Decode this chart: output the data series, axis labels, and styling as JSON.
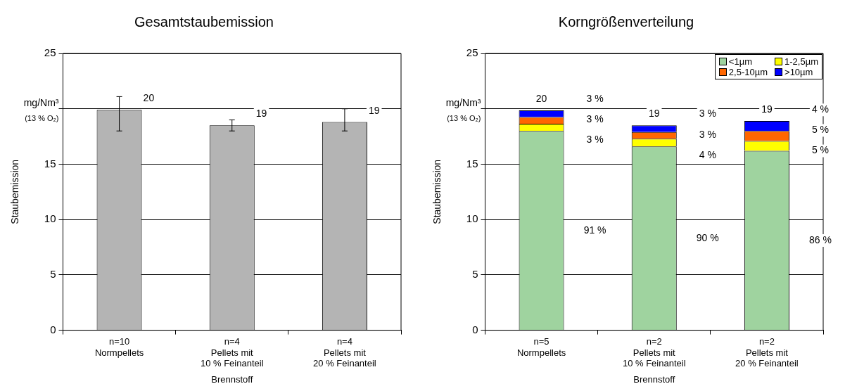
{
  "chart_data": [
    {
      "type": "bar",
      "title": "Gesamtstaubemission",
      "xlabel": "Brennstoff",
      "ylabel": "Staubemission",
      "annotations": [
        "mg/Nm³",
        "(13 % O₂)"
      ],
      "categories": [
        "n=10\nNormpellets",
        "n=4\nPellets mit\n10 % Feinanteil",
        "n=4\nPellets mit\n20 % Feinanteil"
      ],
      "values": [
        19.9,
        18.5,
        18.8
      ],
      "color": "#b4b4b4",
      "errors": [
        [
          18,
          21.1
        ],
        [
          18,
          19
        ],
        [
          18,
          20
        ]
      ],
      "value_labels": [
        "20",
        "19",
        "19"
      ],
      "ylim": [
        0,
        25
      ],
      "yticks": [
        0,
        5,
        10,
        15,
        {
          "value": 20,
          "label": null
        },
        25
      ],
      "grid": "y",
      "legend": false
    },
    {
      "type": "bar",
      "stacked": true,
      "title": "Korngrößenverteilung",
      "xlabel": "Brennstoff",
      "ylabel": "Staubemission",
      "annotations": [
        "mg/Nm³",
        "(13 % O₂)",
        "91 %",
        "3 %",
        "3 %",
        "3 %",
        "90 %",
        "4 %",
        "3 %",
        "3 %",
        "86 %",
        "5 %",
        "5 %",
        "4 %"
      ],
      "categories": [
        "n=5\nNormpellets",
        "n=2\nPellets mit\n10 % Feinanteil",
        "n=2\nPellets mit\n20 % Feinanteil"
      ],
      "series": [
        {
          "name": "<1µm",
          "color": "#9fd39f",
          "values": [
            18.0,
            16.6,
            16.2
          ]
        },
        {
          "name": "1-2,5µm",
          "color": "#ffff00",
          "values": [
            0.65,
            0.7,
            0.9
          ]
        },
        {
          "name": "2,5-10µm",
          "color": "#ff6600",
          "values": [
            0.6,
            0.6,
            0.9
          ]
        },
        {
          "name": ">10µm",
          "color": "#0000ff",
          "values": [
            0.6,
            0.6,
            0.9
          ]
        }
      ],
      "totals": [
        "20",
        "19",
        "19"
      ],
      "ylim": [
        0,
        25
      ],
      "yticks": [
        0,
        5,
        10,
        15,
        {
          "value": 20,
          "label": null
        },
        25
      ],
      "grid": "y",
      "legend": "top right"
    }
  ]
}
